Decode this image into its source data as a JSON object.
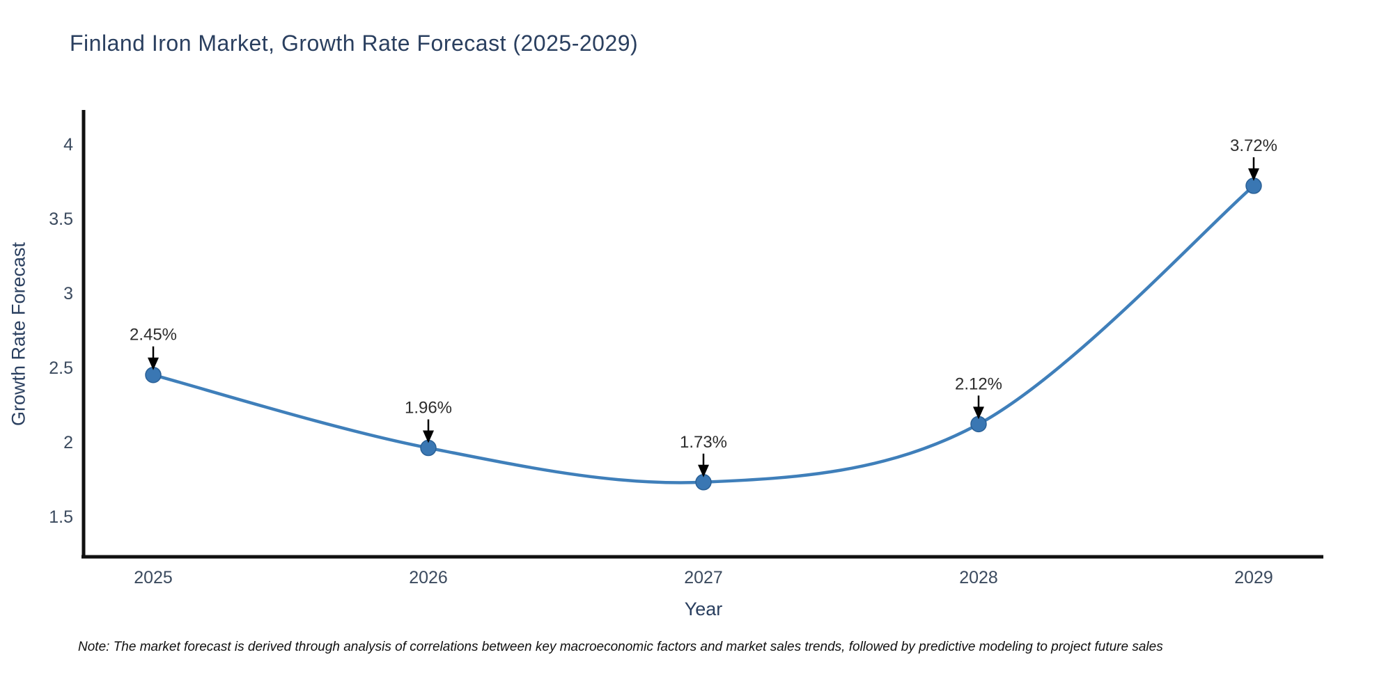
{
  "page": {
    "title": "Finland Iron Market, Growth Rate Forecast (2025-2029)",
    "note": "Note: The market forecast is derived through analysis of correlations between key macroeconomic factors and market sales trends, followed by predictive modeling to project future sales"
  },
  "chart_data": {
    "type": "line",
    "title": "Finland Iron Market, Growth Rate Forecast (2025-2029)",
    "xlabel": "Year",
    "ylabel": "Growth Rate Forecast",
    "categories": [
      "2025",
      "2026",
      "2027",
      "2028",
      "2029"
    ],
    "values": [
      2.45,
      1.96,
      1.73,
      2.12,
      3.72
    ],
    "point_labels": [
      "2.45%",
      "1.96%",
      "1.73%",
      "2.12%",
      "3.72%"
    ],
    "yticks": [
      4,
      3.5,
      3,
      2.5,
      2,
      1.5
    ],
    "ylim": [
      1.23,
      4.23
    ],
    "grid": false,
    "legend": "none",
    "curve": "spline",
    "annotations_have_arrows": true,
    "colors": {
      "line": "#3f7fba",
      "marker": "#3a77b3",
      "marker_edge": "#2a6096",
      "axis": "#111111",
      "title_text": "#2a3f5f",
      "tick_text": "#3b4a5e",
      "annotation_text": "#2d2d2d",
      "arrow": "#000000"
    }
  }
}
